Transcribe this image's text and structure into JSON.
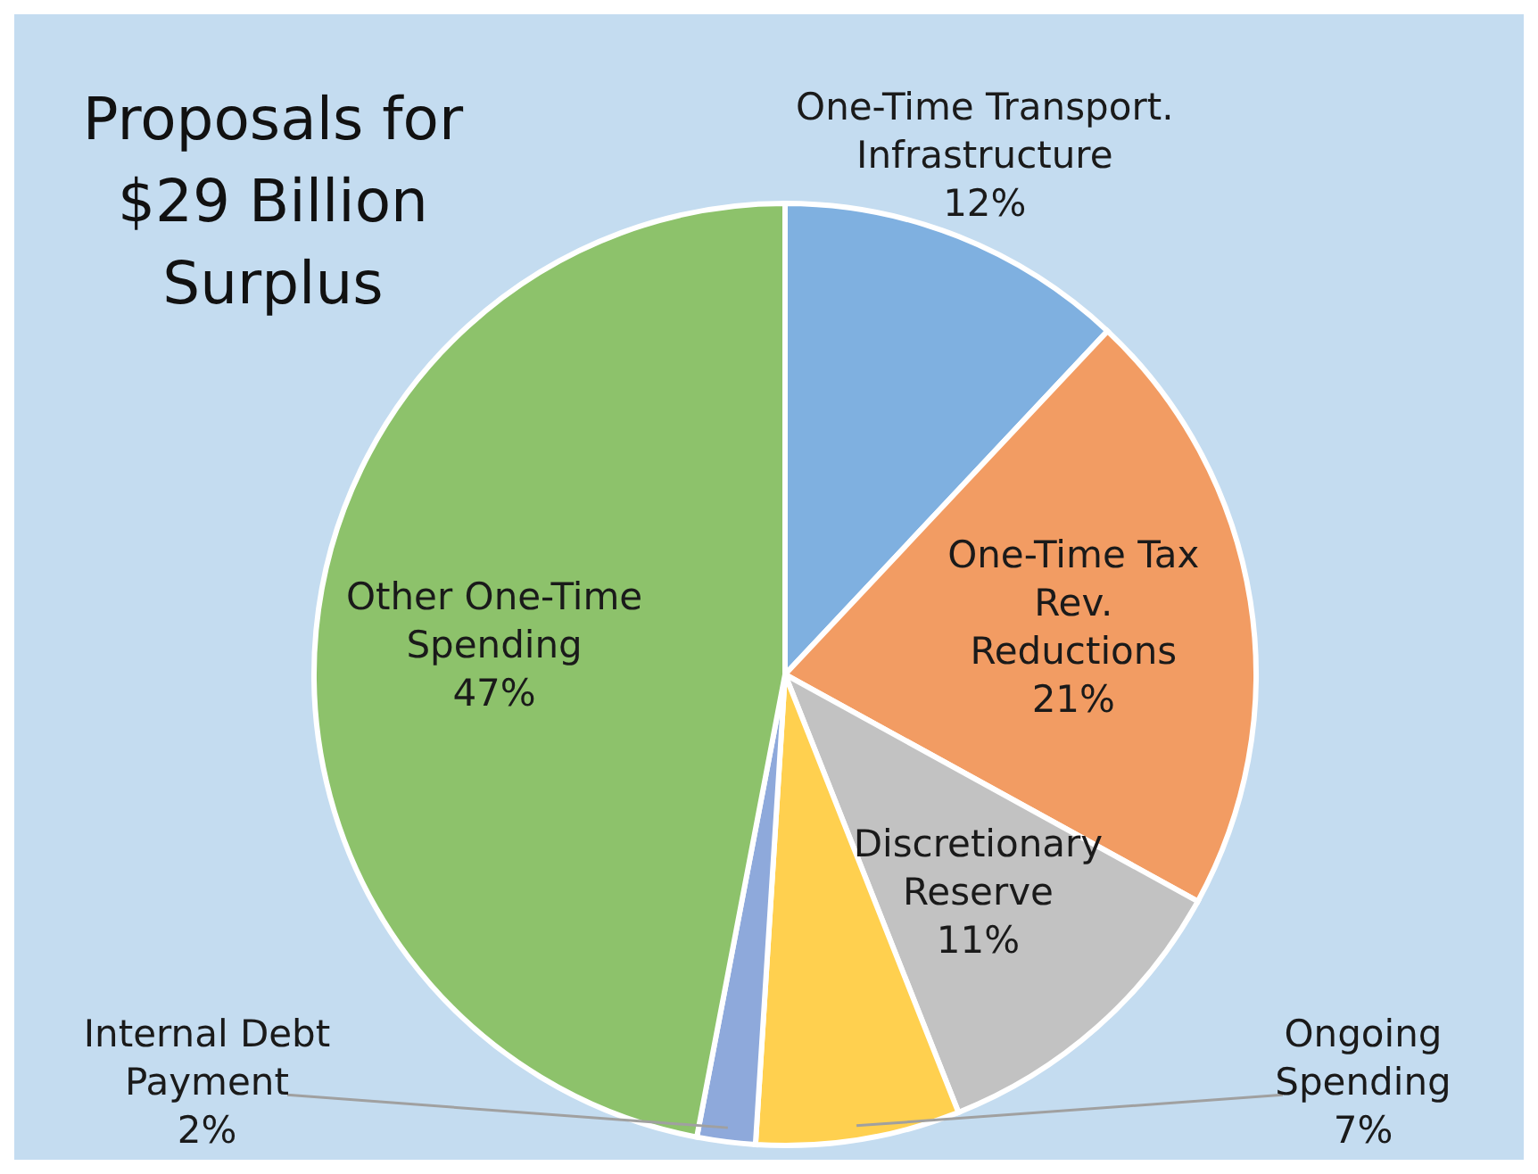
{
  "chart_data": {
    "type": "pie",
    "title": "Proposals for $29 Billion Surplus",
    "categories": [
      "One-Time Transport. Infrastructure",
      "One-Time Tax Rev. Reductions",
      "Discretionary Reserve",
      "Ongoing Spending",
      "Internal Debt Payment",
      "Other One-Time Spending"
    ],
    "values": [
      12,
      21,
      11,
      7,
      2,
      47
    ],
    "value_labels": [
      "12%",
      "21%",
      "11%",
      "7%",
      "2%",
      "47%"
    ],
    "colors": [
      "#7fb0e0",
      "#f29c63",
      "#c2c2c2",
      "#ffd04f",
      "#8ea9db",
      "#8dc26b"
    ]
  }
}
